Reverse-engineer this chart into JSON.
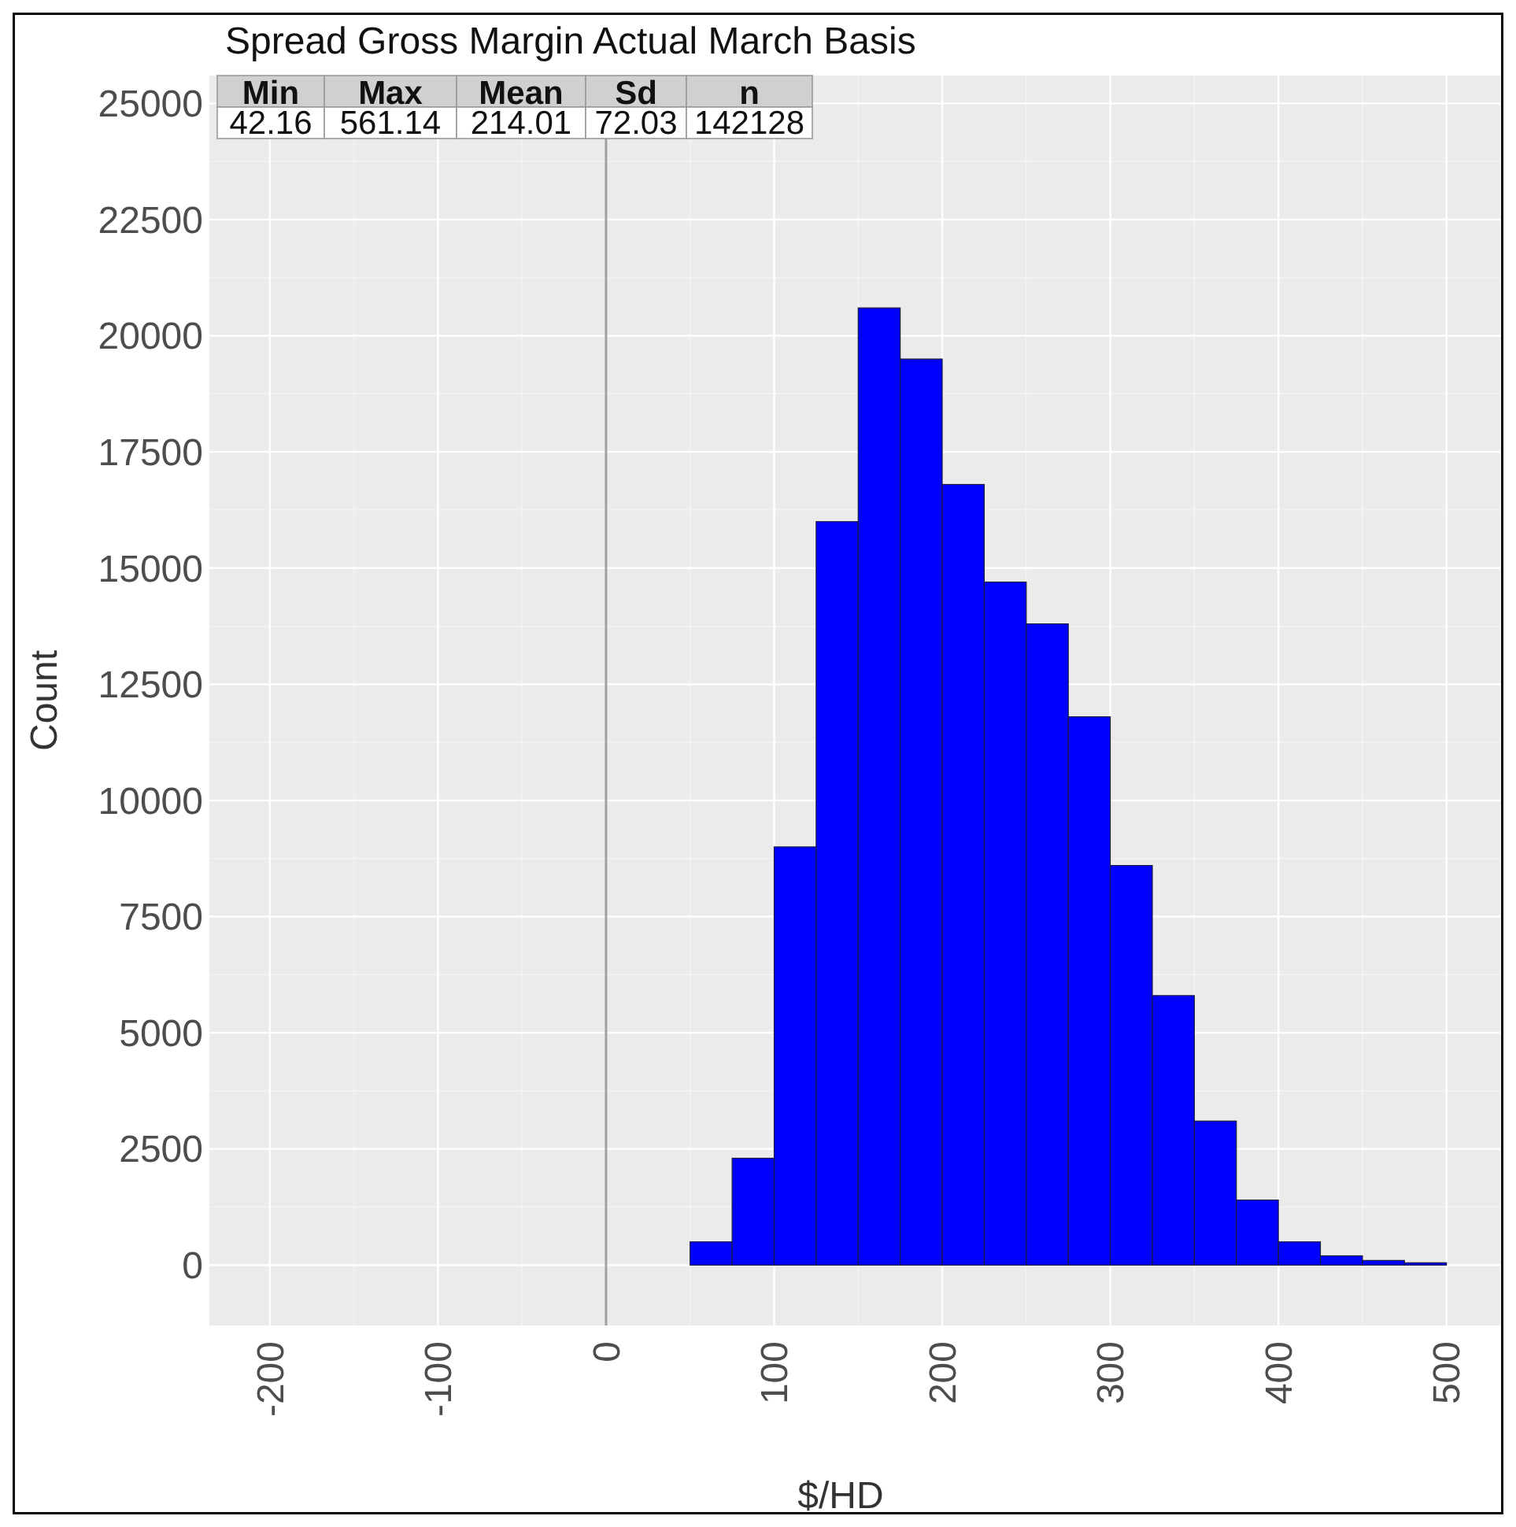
{
  "chart_data": {
    "type": "histogram",
    "title": "Spread Gross Margin Actual March Basis",
    "xlabel": "$/HD",
    "ylabel": "Count",
    "bins": [
      50,
      75,
      100,
      125,
      150,
      175,
      200,
      225,
      250,
      275,
      300,
      325,
      350,
      375,
      400,
      425,
      450,
      475,
      500
    ],
    "values": [
      500,
      2300,
      9000,
      16000,
      20600,
      19500,
      16800,
      14700,
      13800,
      11800,
      8600,
      5800,
      3100,
      1400,
      500,
      200,
      100,
      50
    ],
    "color": "#0000ff",
    "xlim": [
      -236,
      532
    ],
    "xticks": [
      -200,
      -100,
      0,
      100,
      200,
      300,
      400,
      500
    ],
    "ylim": [
      -1300,
      25600
    ],
    "yticks": [
      0,
      2500,
      5000,
      7500,
      10000,
      12500,
      15000,
      17500,
      20000,
      22500,
      25000
    ],
    "grid": true,
    "ref_lines": [
      {
        "axis": "x",
        "value": 0,
        "color": "#a0a0a0"
      }
    ],
    "annotations": [
      "Min",
      "Max",
      "Mean",
      "Sd",
      "n",
      "42.16",
      "561.14",
      "214.01",
      "72.03",
      "142128"
    ]
  }
}
